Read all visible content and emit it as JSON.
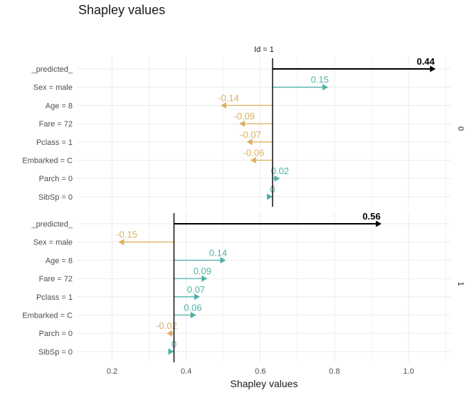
{
  "chart_data": {
    "type": "bar",
    "title": "Shapley values",
    "strip_label": "Id = 1",
    "xlabel": "Shapley values",
    "xlim": [
      0.105,
      1.115
    ],
    "xticks": [
      0.2,
      0.4,
      0.6,
      0.8,
      1.0
    ],
    "xtick_labels": [
      "0.2",
      "0.4",
      "0.6",
      "0.8",
      "1.0"
    ],
    "colors": {
      "positive": "#4fb1a5",
      "negative": "#dbb05e",
      "prediction": "#000000"
    },
    "panels": [
      {
        "facet_label": "0",
        "baseline": 0.633,
        "rows": [
          {
            "label": "_predicted_",
            "value": 0.44,
            "text": "0.44",
            "is_prediction": true
          },
          {
            "label": "Sex = male",
            "value": 0.15,
            "text": "0.15"
          },
          {
            "label": "Age = 8",
            "value": -0.14,
            "text": "-0.14"
          },
          {
            "label": "Fare = 72",
            "value": -0.09,
            "text": "-0.09"
          },
          {
            "label": "Pclass = 1",
            "value": -0.07,
            "text": "-0.07"
          },
          {
            "label": "Embarked = C",
            "value": -0.06,
            "text": "-0.06"
          },
          {
            "label": "Parch = 0",
            "value": 0.02,
            "text": "0.02"
          },
          {
            "label": "SibSp = 0",
            "value": 0.0,
            "text": "0"
          }
        ]
      },
      {
        "facet_label": "1",
        "baseline": 0.367,
        "rows": [
          {
            "label": "_predicted_",
            "value": 0.56,
            "text": "0.56",
            "is_prediction": true
          },
          {
            "label": "Sex = male",
            "value": -0.15,
            "text": "-0.15"
          },
          {
            "label": "Age = 8",
            "value": 0.14,
            "text": "0.14"
          },
          {
            "label": "Fare = 72",
            "value": 0.09,
            "text": "0.09"
          },
          {
            "label": "Pclass = 1",
            "value": 0.07,
            "text": "0.07"
          },
          {
            "label": "Embarked = C",
            "value": 0.06,
            "text": "0.06"
          },
          {
            "label": "Parch = 0",
            "value": -0.02,
            "text": "-0.02"
          },
          {
            "label": "SibSp = 0",
            "value": 0.0,
            "text": "0"
          }
        ]
      }
    ]
  }
}
